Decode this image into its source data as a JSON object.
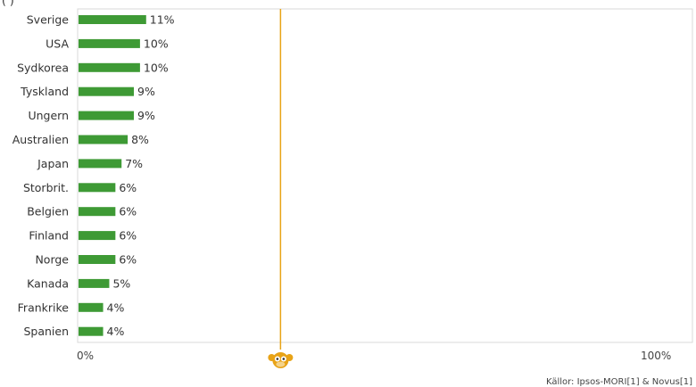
{
  "chart_data": {
    "type": "bar",
    "orientation": "horizontal",
    "categories": [
      "Sverige",
      "USA",
      "Sydkorea",
      "Tyskland",
      "Ungern",
      "Australien",
      "Japan",
      "Storbrit.",
      "Belgien",
      "Finland",
      "Norge",
      "Kanada",
      "Frankrike",
      "Spanien"
    ],
    "values": [
      11,
      10,
      10,
      9,
      9,
      8,
      7,
      6,
      6,
      6,
      6,
      5,
      4,
      4
    ],
    "value_labels": [
      "11%",
      "10%",
      "10%",
      "9%",
      "9%",
      "8%",
      "7%",
      "6%",
      "6%",
      "6%",
      "6%",
      "5%",
      "4%",
      "4%"
    ],
    "xlim": [
      0,
      100
    ],
    "x_ticks": [
      "0%",
      "100%"
    ],
    "bar_color": "#3e9a35",
    "reference_line": {
      "value": 33,
      "color": "#e8a317",
      "marker": "monkey-icon"
    },
    "grid": false,
    "source": "Källor: Ipsos-MORI[1] & Novus[1]",
    "header_fragment": "(                )"
  }
}
